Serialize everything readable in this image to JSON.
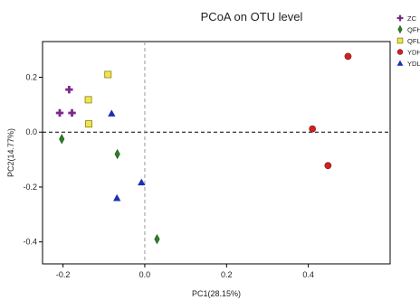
{
  "chart_data": {
    "type": "scatter",
    "title": "PCoA on OTU level",
    "xlabel": "PC1(28.15%)",
    "ylabel": "PC2(14.77%)",
    "xlim": [
      -0.25,
      0.6
    ],
    "ylim": [
      -0.48,
      0.33
    ],
    "x_ticks": [
      -0.2,
      0.0,
      0.2,
      0.4
    ],
    "x_tick_labels": [
      "-0.2",
      "0.0",
      "0.2",
      "0.4"
    ],
    "y_ticks": [
      -0.4,
      -0.2,
      0.0,
      0.2
    ],
    "y_tick_labels": [
      "-0.4",
      "-0.2",
      "0.0",
      "0.2"
    ],
    "reference_lines": {
      "horizontal_y": 0.0,
      "vertical_x": 0.0
    },
    "legend_position": "right",
    "series": [
      {
        "name": "ZC",
        "marker": "plus",
        "color": "#7b2a8c",
        "points": [
          [
            -0.185,
            0.155
          ],
          [
            -0.208,
            0.07
          ],
          [
            -0.178,
            0.07
          ]
        ]
      },
      {
        "name": "QFH",
        "marker": "diamond",
        "color": "#2f7d26",
        "points": [
          [
            -0.203,
            -0.025
          ],
          [
            -0.067,
            -0.08
          ],
          [
            0.03,
            -0.39
          ]
        ]
      },
      {
        "name": "QFL",
        "marker": "square",
        "color": "#f2e44a",
        "points": [
          [
            -0.09,
            0.21
          ],
          [
            -0.138,
            0.118
          ],
          [
            -0.137,
            0.03
          ]
        ]
      },
      {
        "name": "YDH",
        "marker": "circle",
        "color": "#cc2222",
        "points": [
          [
            0.497,
            0.276
          ],
          [
            0.41,
            0.012
          ],
          [
            0.448,
            -0.122
          ]
        ]
      },
      {
        "name": "YDL",
        "marker": "triangle",
        "color": "#1a2fb0",
        "points": [
          [
            -0.081,
            0.068
          ],
          [
            -0.068,
            -0.24
          ],
          [
            -0.008,
            -0.183
          ]
        ]
      }
    ]
  }
}
